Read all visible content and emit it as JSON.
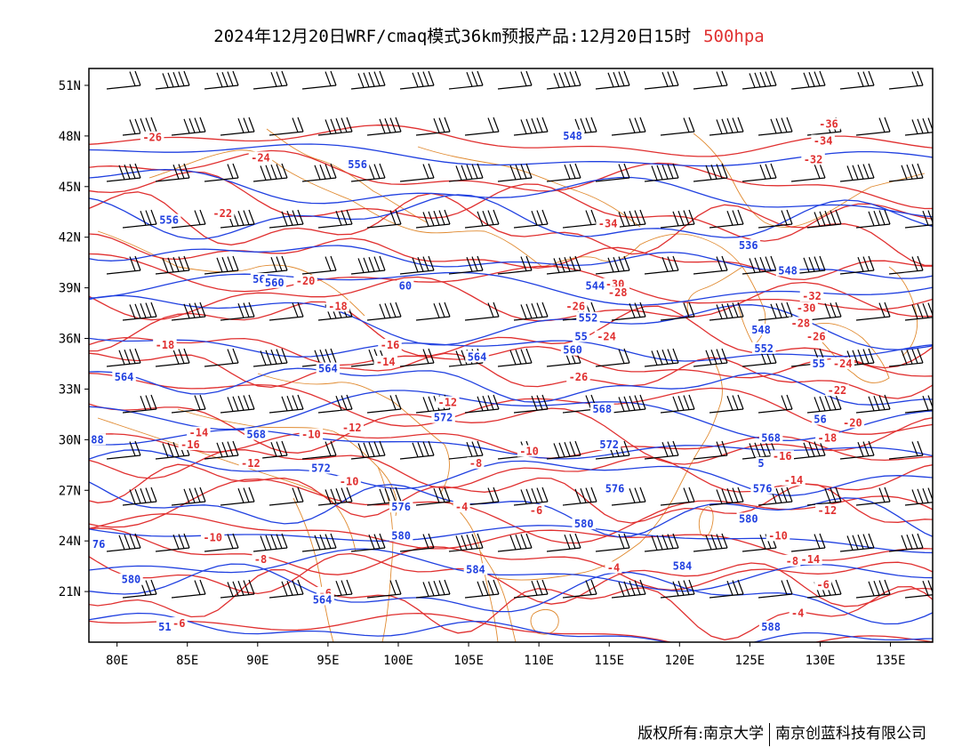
{
  "title": {
    "main": "2024年12月20日WRF/cmaq模式36km预报产品:12月20日15时",
    "level": "500hpa"
  },
  "colors": {
    "temperature": "#e03030",
    "height": "#2040e0",
    "coast": "#e08a30",
    "wind": "#000000"
  },
  "axes": {
    "lat_labels": [
      "51N",
      "48N",
      "45N",
      "42N",
      "39N",
      "36N",
      "33N",
      "30N",
      "27N",
      "24N",
      "21N"
    ],
    "lat_values": [
      51,
      48,
      45,
      42,
      39,
      36,
      33,
      30,
      27,
      24,
      21
    ],
    "lon_labels": [
      "80E",
      "85E",
      "90E",
      "95E",
      "100E",
      "105E",
      "110E",
      "115E",
      "120E",
      "125E",
      "130E",
      "135E"
    ],
    "lon_values": [
      80,
      85,
      90,
      95,
      100,
      105,
      110,
      115,
      120,
      125,
      130,
      135
    ],
    "lon_range": [
      78,
      138
    ],
    "lat_range": [
      18,
      52
    ]
  },
  "temperature_labels": [
    {
      "text": "-26",
      "lon": 82.5,
      "lat": 47.8
    },
    {
      "text": "-24",
      "lon": 90.2,
      "lat": 46.6
    },
    {
      "text": "-22",
      "lon": 87.5,
      "lat": 43.3
    },
    {
      "text": "-20",
      "lon": 93.4,
      "lat": 39.3
    },
    {
      "text": "-18",
      "lon": 95.7,
      "lat": 37.8
    },
    {
      "text": "-18",
      "lon": 83.4,
      "lat": 35.5
    },
    {
      "text": "-16",
      "lon": 99.4,
      "lat": 35.5
    },
    {
      "text": "-14",
      "lon": 99.1,
      "lat": 34.5
    },
    {
      "text": "-12",
      "lon": 103.5,
      "lat": 32.1
    },
    {
      "text": "-14",
      "lon": 85.8,
      "lat": 30.3
    },
    {
      "text": "-16",
      "lon": 85.2,
      "lat": 29.6
    },
    {
      "text": "-10",
      "lon": 93.8,
      "lat": 30.2
    },
    {
      "text": "-12",
      "lon": 96.7,
      "lat": 30.6
    },
    {
      "text": "-12",
      "lon": 89.5,
      "lat": 28.5
    },
    {
      "text": "-10",
      "lon": 96.5,
      "lat": 27.4
    },
    {
      "text": "-8",
      "lon": 105.5,
      "lat": 28.5
    },
    {
      "text": "-10",
      "lon": 109.3,
      "lat": 29.2
    },
    {
      "text": "-4",
      "lon": 104.5,
      "lat": 25.9
    },
    {
      "text": "-6",
      "lon": 109.8,
      "lat": 25.7
    },
    {
      "text": "-10",
      "lon": 86.8,
      "lat": 24.1
    },
    {
      "text": "-8",
      "lon": 90.2,
      "lat": 22.8
    },
    {
      "text": "-6",
      "lon": 94.8,
      "lat": 20.8
    },
    {
      "text": "-6",
      "lon": 84.4,
      "lat": 19.0
    },
    {
      "text": "-4",
      "lon": 115.3,
      "lat": 22.3
    },
    {
      "text": "-34",
      "lon": 114.9,
      "lat": 42.7
    },
    {
      "text": "-30",
      "lon": 115.4,
      "lat": 39.1
    },
    {
      "text": "-28",
      "lon": 115.6,
      "lat": 38.6
    },
    {
      "text": "-26",
      "lon": 112.6,
      "lat": 37.8
    },
    {
      "text": "-24",
      "lon": 114.8,
      "lat": 36.0
    },
    {
      "text": "-26",
      "lon": 112.8,
      "lat": 33.6
    },
    {
      "text": "-36",
      "lon": 130.6,
      "lat": 48.6
    },
    {
      "text": "-34",
      "lon": 130.2,
      "lat": 47.6
    },
    {
      "text": "-32",
      "lon": 129.5,
      "lat": 46.5
    },
    {
      "text": "-32",
      "lon": 129.4,
      "lat": 38.4
    },
    {
      "text": "-30",
      "lon": 129.0,
      "lat": 37.7
    },
    {
      "text": "-28",
      "lon": 128.6,
      "lat": 36.8
    },
    {
      "text": "-26",
      "lon": 129.7,
      "lat": 36.0
    },
    {
      "text": "-24",
      "lon": 131.6,
      "lat": 34.4
    },
    {
      "text": "-22",
      "lon": 131.2,
      "lat": 32.8
    },
    {
      "text": "-20",
      "lon": 132.3,
      "lat": 30.9
    },
    {
      "text": "-18",
      "lon": 130.5,
      "lat": 30.0
    },
    {
      "text": "-16",
      "lon": 127.3,
      "lat": 28.9
    },
    {
      "text": "-14",
      "lon": 128.1,
      "lat": 27.5
    },
    {
      "text": "-12",
      "lon": 130.5,
      "lat": 25.7
    },
    {
      "text": "-10",
      "lon": 127.0,
      "lat": 24.2
    },
    {
      "text": "-8",
      "lon": 128.0,
      "lat": 22.7
    },
    {
      "text": "-14",
      "lon": 129.3,
      "lat": 22.8
    },
    {
      "text": "-6",
      "lon": 130.2,
      "lat": 21.3
    },
    {
      "text": "-4",
      "lon": 128.4,
      "lat": 19.6
    }
  ],
  "height_labels": [
    {
      "text": "548",
      "lon": 112.4,
      "lat": 47.9
    },
    {
      "text": "556",
      "lon": 97.1,
      "lat": 46.2
    },
    {
      "text": "556",
      "lon": 83.7,
      "lat": 42.9
    },
    {
      "text": "56",
      "lon": 90.1,
      "lat": 39.4
    },
    {
      "text": "560",
      "lon": 91.2,
      "lat": 39.2
    },
    {
      "text": "60",
      "lon": 100.5,
      "lat": 39.0
    },
    {
      "text": "544",
      "lon": 114.0,
      "lat": 39.0
    },
    {
      "text": "552",
      "lon": 113.5,
      "lat": 37.1
    },
    {
      "text": "55",
      "lon": 113.0,
      "lat": 36.0
    },
    {
      "text": "560",
      "lon": 112.4,
      "lat": 35.2
    },
    {
      "text": "564",
      "lon": 95.0,
      "lat": 34.1
    },
    {
      "text": "564",
      "lon": 105.6,
      "lat": 34.8
    },
    {
      "text": "564",
      "lon": 80.5,
      "lat": 33.6
    },
    {
      "text": "568",
      "lon": 114.5,
      "lat": 31.7
    },
    {
      "text": "572",
      "lon": 103.2,
      "lat": 31.2
    },
    {
      "text": "568",
      "lon": 89.9,
      "lat": 30.2
    },
    {
      "text": "88",
      "lon": 78.6,
      "lat": 29.9
    },
    {
      "text": "572",
      "lon": 115.0,
      "lat": 29.6
    },
    {
      "text": "572",
      "lon": 94.5,
      "lat": 28.2
    },
    {
      "text": "576",
      "lon": 115.4,
      "lat": 27.0
    },
    {
      "text": "576",
      "lon": 100.2,
      "lat": 25.9
    },
    {
      "text": "580",
      "lon": 100.2,
      "lat": 24.2
    },
    {
      "text": "580",
      "lon": 113.2,
      "lat": 24.9
    },
    {
      "text": "584",
      "lon": 120.2,
      "lat": 22.4
    },
    {
      "text": "584",
      "lon": 105.5,
      "lat": 22.2
    },
    {
      "text": "564",
      "lon": 94.6,
      "lat": 20.4
    },
    {
      "text": "580",
      "lon": 81.0,
      "lat": 21.6
    },
    {
      "text": "76",
      "lon": 78.7,
      "lat": 23.7
    },
    {
      "text": "51",
      "lon": 83.4,
      "lat": 18.8
    },
    {
      "text": "588",
      "lon": 126.5,
      "lat": 18.8
    },
    {
      "text": "536",
      "lon": 124.9,
      "lat": 41.4
    },
    {
      "text": "548",
      "lon": 127.7,
      "lat": 39.9
    },
    {
      "text": "548",
      "lon": 125.8,
      "lat": 36.4
    },
    {
      "text": "552",
      "lon": 126.0,
      "lat": 35.3
    },
    {
      "text": "55",
      "lon": 129.9,
      "lat": 34.4
    },
    {
      "text": "56",
      "lon": 130.0,
      "lat": 31.1
    },
    {
      "text": "568",
      "lon": 126.5,
      "lat": 30.0
    },
    {
      "text": "5",
      "lon": 125.8,
      "lat": 28.5
    },
    {
      "text": "576",
      "lon": 125.9,
      "lat": 27.0
    },
    {
      "text": "580",
      "lon": 124.9,
      "lat": 25.2
    }
  ],
  "footer": {
    "left": "版权所有:南京大学",
    "right": "南京创蓝科技有限公司"
  }
}
